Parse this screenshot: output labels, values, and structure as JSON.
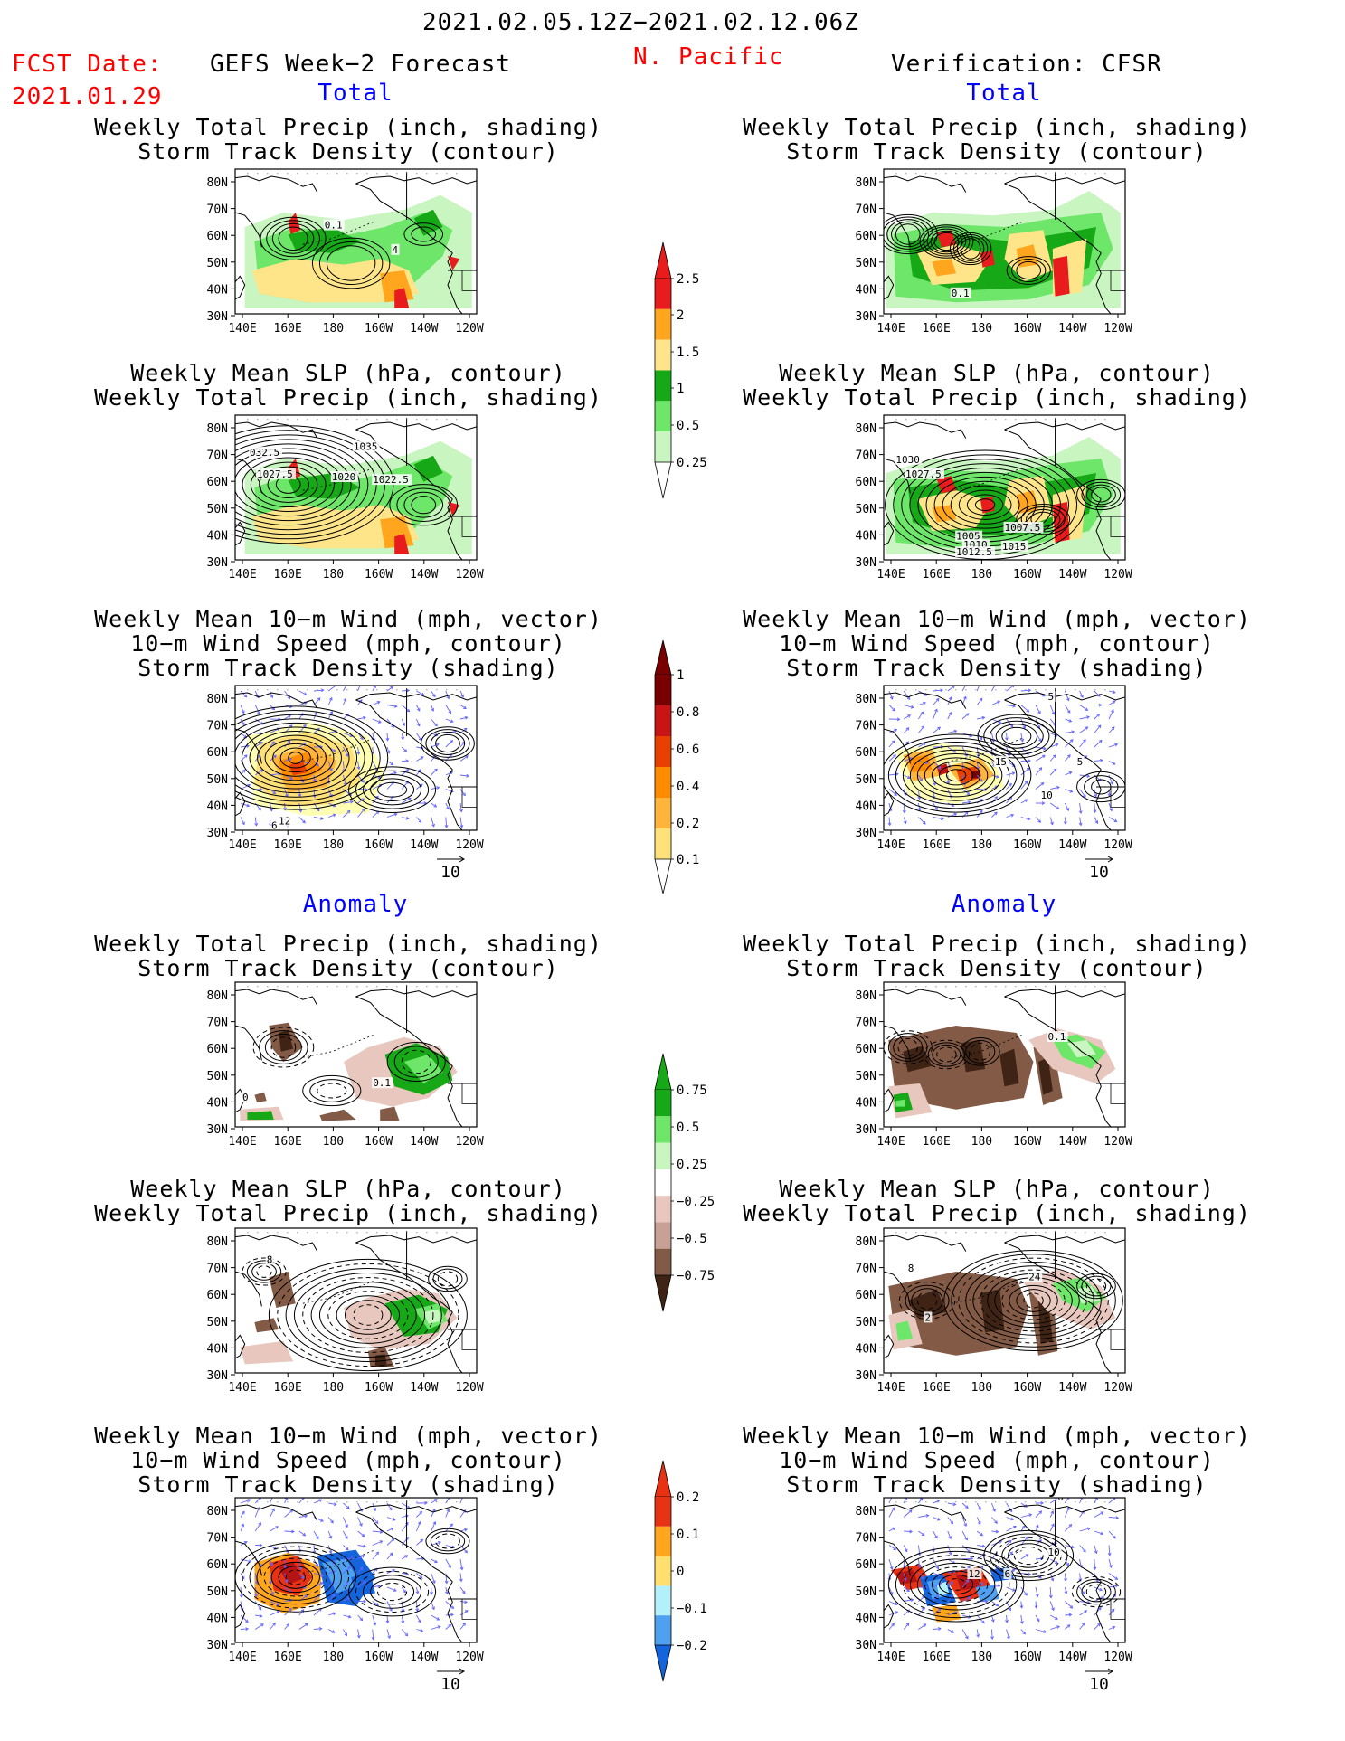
{
  "header": {
    "period": "2021.02.05.12Z−2021.02.12.06Z",
    "fcst_label": "FCST Date:",
    "fcst_date": "2021.01.29",
    "left_title": "GEFS Week−2 Forecast",
    "region": "N. Pacific",
    "right_title": "Verification: CFSR"
  },
  "sections": {
    "total_left": "Total",
    "total_right": "Total",
    "anomaly_left": "Anomaly",
    "anomaly_right": "Anomaly"
  },
  "panel_titles": {
    "precip_storm": [
      "Weekly Total Precip (inch, shading)",
      "Storm Track Density (contour)"
    ],
    "slp_precip": [
      "Weekly Mean SLP (hPa, contour)",
      "Weekly Total Precip (inch, shading)"
    ],
    "wind_storm": [
      "Weekly Mean 10−m Wind (mph, vector)",
      "10−m Wind Speed (mph, contour)",
      "Storm Track Density (shading)"
    ]
  },
  "axes": {
    "lat_labels": [
      "80N",
      "70N",
      "60N",
      "50N",
      "40N",
      "30N"
    ],
    "lon_labels": [
      "140E",
      "160E",
      "180",
      "160W",
      "140W",
      "120W"
    ]
  },
  "vector_scale": "10",
  "contour_labels": {
    "p1_left": [
      "0.1",
      "4"
    ],
    "p1_right": [
      "0.1"
    ],
    "p2_left": [
      "032.5",
      "1027.5",
      "1020",
      "1022.5",
      "1035"
    ],
    "p2_right": [
      "1030",
      "1027.5",
      "1005",
      "1007.5",
      "1010",
      "1012.5",
      "1015"
    ],
    "p3_left": [
      "12",
      "6"
    ],
    "p3_right": [
      "15",
      "5",
      "10",
      "5"
    ],
    "p4_left": [
      "0.1",
      "0"
    ],
    "p4_right": [
      "0.1"
    ],
    "p5_left": [
      "8"
    ],
    "p5_right": [
      "8",
      "24",
      "2"
    ],
    "p6_right": [
      "12",
      "0",
      "10",
      "6"
    ]
  },
  "colors": {
    "precip": [
      "#c8f5c0",
      "#6ee66a",
      "#16a816",
      "#ffe58a",
      "#ffa51e",
      "#e81c1c"
    ],
    "storm": [
      "#ffffb4",
      "#ffe17a",
      "#ffb43c",
      "#ff8c00",
      "#e84000",
      "#c81414",
      "#780000"
    ],
    "precip_anom": [
      "#3f2416",
      "#825a46",
      "#c8a096",
      "#e8c8be",
      "#ffffff",
      "#c8f5c0",
      "#6ee66a",
      "#16a816"
    ],
    "storm_anom": [
      "#1464dc",
      "#50a0f0",
      "#b4f0fa",
      "#ffffff",
      "#ffe06e",
      "#ffa51e",
      "#e83214"
    ]
  },
  "chart_data": [
    {
      "type": "heatmap",
      "title": "Weekly Total Precip (inch, shading)",
      "colorbar_levels": [
        0.25,
        0.5,
        1,
        1.5,
        2,
        2.5
      ],
      "colorbar_tick_labels": [
        "0.25",
        "0.5",
        "1",
        "1.5",
        "2",
        "2.5"
      ]
    },
    {
      "type": "heatmap",
      "title": "Storm Track Density (shading)",
      "colorbar_levels": [
        0.1,
        0.2,
        0.4,
        0.6,
        0.8,
        1
      ],
      "colorbar_tick_labels": [
        "0.1",
        "0.2",
        "0.4",
        "0.6",
        "0.8",
        "1"
      ]
    },
    {
      "type": "heatmap",
      "title": "Weekly Total Precip (inch, shading)",
      "colorbar_levels": [
        -0.75,
        -0.5,
        -0.25,
        0.25,
        0.5,
        0.75
      ],
      "colorbar_tick_labels": [
        "0.75",
        "0.5",
        "0.25",
        "−0.25",
        "−0.5",
        "−0.75"
      ]
    },
    {
      "type": "heatmap",
      "title": "Storm Track Density (shading)",
      "colorbar_levels": [
        -0.2,
        -0.1,
        0,
        0.1,
        0.2
      ],
      "colorbar_tick_labels": [
        "0.2",
        "0.1",
        "0",
        "−0.1",
        "−0.2"
      ]
    }
  ]
}
